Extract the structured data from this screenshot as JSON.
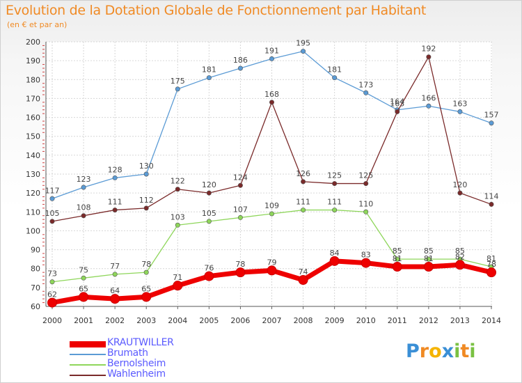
{
  "title": "Evolution de la Dotation Globale de Fonctionnement par Habitant",
  "subtitle": "(en € et par an)",
  "brand": {
    "letters": [
      "P",
      "r",
      "o",
      "x",
      "i",
      "t",
      "i"
    ],
    "colors": [
      "#3a8fd6",
      "#f08a24",
      "#f5b400",
      "#3a8fd6",
      "#7ac143",
      "#f08a24",
      "#7ac143"
    ]
  },
  "chart_data": {
    "type": "line",
    "x": [
      "2000",
      "2001",
      "2002",
      "2003",
      "2004",
      "2005",
      "2006",
      "2007",
      "2008",
      "2009",
      "2010",
      "2011",
      "2012",
      "2013",
      "2014"
    ],
    "ylim": [
      60,
      200
    ],
    "yticks": [
      "60",
      "70",
      "80",
      "90",
      "100",
      "110",
      "120",
      "130",
      "140",
      "150",
      "160",
      "170",
      "180",
      "190",
      "200"
    ],
    "grid": true,
    "legend_position": "bottom-left",
    "series": [
      {
        "name": "KRAUTWILLER",
        "color": "#ee0000",
        "values": [
          62,
          65,
          64,
          65,
          71,
          76,
          78,
          79,
          74,
          84,
          83,
          81,
          81,
          82,
          78
        ],
        "labels": [
          "62",
          "65",
          "64",
          "65",
          "71",
          "76",
          "78",
          "79",
          "74",
          "84",
          "83",
          "81",
          "81",
          "82",
          "78"
        ]
      },
      {
        "name": "Brumath",
        "color": "#5b9bd5",
        "values": [
          117,
          123,
          128,
          130,
          175,
          181,
          186,
          191,
          195,
          181,
          173,
          164,
          166,
          163,
          157
        ],
        "labels": [
          "117",
          "123",
          "128",
          "130",
          "175",
          "181",
          "186",
          "191",
          "195",
          "181",
          "173",
          "164",
          "166",
          "163",
          "157"
        ]
      },
      {
        "name": "Bernolsheim",
        "color": "#8ed65a",
        "values": [
          73,
          75,
          77,
          78,
          103,
          105,
          107,
          109,
          111,
          111,
          110,
          85,
          85,
          85,
          81
        ],
        "labels": [
          "73",
          "75",
          "77",
          "78",
          "103",
          "105",
          "107",
          "109",
          "111",
          "111",
          "110",
          "85",
          "85",
          "85",
          "81"
        ]
      },
      {
        "name": "Wahlenheim",
        "color": "#7a2a2a",
        "values": [
          105,
          108,
          111,
          112,
          122,
          120,
          124,
          168,
          126,
          125,
          125,
          163,
          192,
          120,
          114
        ],
        "labels": [
          "105",
          "108",
          "111",
          "112",
          "122",
          "120",
          "124",
          "168",
          "126",
          "125",
          "125",
          "163",
          "192",
          "120",
          "114"
        ]
      }
    ]
  }
}
